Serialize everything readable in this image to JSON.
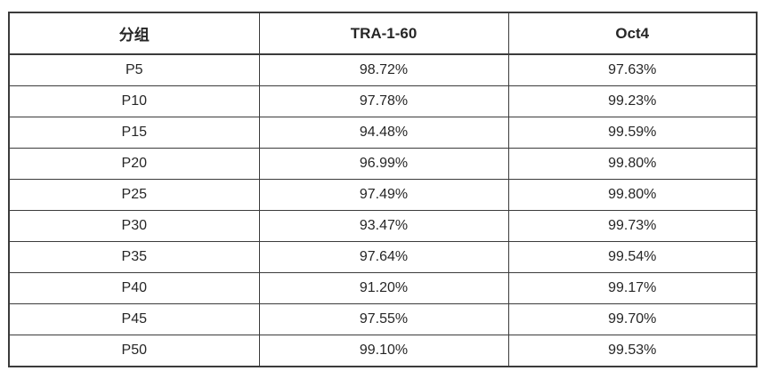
{
  "colors": {
    "border": "#3b3b3b",
    "text": "#262626",
    "background": "#ffffff"
  },
  "table": {
    "headers": [
      "分组",
      "TRA-1-60",
      "Oct4"
    ],
    "rows": [
      [
        "P5",
        "98.72%",
        "97.63%"
      ],
      [
        "P10",
        "97.78%",
        "99.23%"
      ],
      [
        "P15",
        "94.48%",
        "99.59%"
      ],
      [
        "P20",
        "96.99%",
        "99.80%"
      ],
      [
        "P25",
        "97.49%",
        "99.80%"
      ],
      [
        "P30",
        "93.47%",
        "99.73%"
      ],
      [
        "P35",
        "97.64%",
        "99.54%"
      ],
      [
        "P40",
        "91.20%",
        "99.17%"
      ],
      [
        "P45",
        "97.55%",
        "99.70%"
      ],
      [
        "P50",
        "99.10%",
        "99.53%"
      ]
    ]
  },
  "chart_data": {
    "type": "table",
    "title": "",
    "columns": [
      "分组",
      "TRA-1-60",
      "Oct4"
    ],
    "categories": [
      "P5",
      "P10",
      "P15",
      "P20",
      "P25",
      "P30",
      "P35",
      "P40",
      "P45",
      "P50"
    ],
    "series": [
      {
        "name": "TRA-1-60",
        "values": [
          98.72,
          97.78,
          94.48,
          96.99,
          97.49,
          93.47,
          97.64,
          91.2,
          97.55,
          99.1
        ]
      },
      {
        "name": "Oct4",
        "values": [
          97.63,
          99.23,
          99.59,
          99.8,
          99.8,
          99.73,
          99.54,
          99.17,
          99.7,
          99.53
        ]
      }
    ],
    "value_unit": "%"
  }
}
